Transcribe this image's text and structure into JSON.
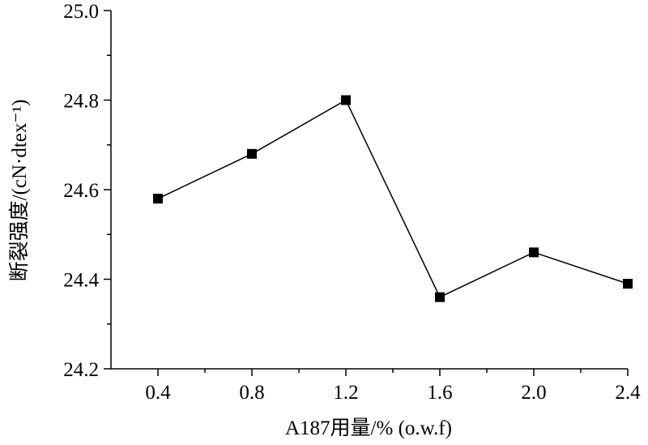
{
  "chart_data": {
    "type": "line",
    "title": "",
    "xlabel": "A187用量/% (o.w.f)",
    "ylabel": "断裂强度/(cN·dtex⁻¹)",
    "x": [
      0.4,
      0.8,
      1.2,
      1.6,
      2.0,
      2.4
    ],
    "x_tick_labels": [
      "0.4",
      "0.8",
      "1.2",
      "1.6",
      "2.0",
      "2.4"
    ],
    "y_tick_labels": [
      "24.2",
      "24.4",
      "24.6",
      "24.8",
      "25.0"
    ],
    "y_ticks": [
      24.2,
      24.4,
      24.6,
      24.8,
      25.0
    ],
    "series": [
      {
        "values": [
          24.58,
          24.68,
          24.8,
          24.36,
          24.46,
          24.39
        ],
        "marker": "square",
        "color": "#000000"
      }
    ],
    "xlim": [
      0.2,
      2.4
    ],
    "ylim": [
      24.2,
      25.0
    ],
    "grid": false,
    "legend": "none"
  }
}
